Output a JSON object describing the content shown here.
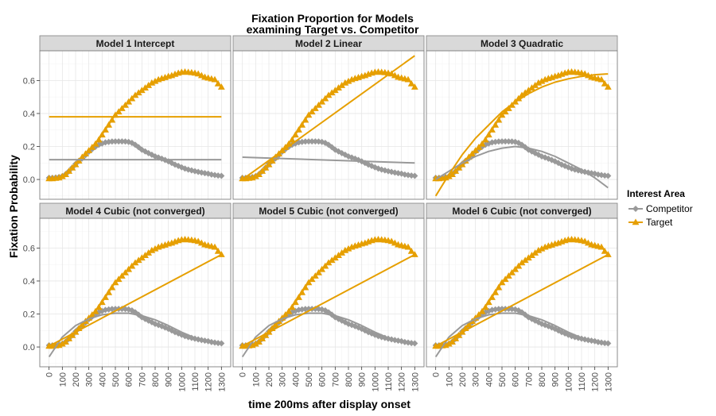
{
  "chart_data": {
    "type": "line",
    "title_lines": [
      "Fixation Proportion for Models",
      "examining Target vs. Competitor"
    ],
    "xlabel": "time 200ms after display onset",
    "ylabel": "Fixation Probability",
    "x_ticks": [
      0,
      100,
      200,
      300,
      400,
      500,
      600,
      700,
      800,
      900,
      1000,
      1100,
      1200,
      1300
    ],
    "y_ticks": [
      0.0,
      0.2,
      0.4,
      0.6
    ],
    "y_tick_labels": [
      "0.0",
      "0.2",
      "0.4",
      "0.6"
    ],
    "xlim": [
      -70,
      1370
    ],
    "ylim": [
      -0.12,
      0.78
    ],
    "grid": true,
    "legend": {
      "title": "Interest Area",
      "placement": "right",
      "entries": [
        {
          "label": "Competitor",
          "color": "#999999",
          "marker": "diamond"
        },
        {
          "label": "Target",
          "color": "#E69F00",
          "marker": "triangle"
        }
      ]
    },
    "observed": {
      "x": [
        0,
        25,
        50,
        75,
        100,
        125,
        150,
        175,
        200,
        225,
        250,
        275,
        300,
        325,
        350,
        375,
        400,
        425,
        450,
        475,
        500,
        525,
        550,
        575,
        600,
        625,
        650,
        675,
        700,
        725,
        750,
        775,
        800,
        825,
        850,
        875,
        900,
        925,
        950,
        975,
        1000,
        1025,
        1050,
        1075,
        1100,
        1125,
        1150,
        1175,
        1200,
        1225,
        1250,
        1275,
        1300
      ],
      "series": [
        {
          "name": "Competitor",
          "values": [
            0.01,
            0.01,
            0.012,
            0.015,
            0.02,
            0.032,
            0.05,
            0.072,
            0.094,
            0.112,
            0.128,
            0.148,
            0.168,
            0.184,
            0.198,
            0.21,
            0.218,
            0.225,
            0.228,
            0.23,
            0.231,
            0.231,
            0.231,
            0.23,
            0.228,
            0.222,
            0.21,
            0.196,
            0.18,
            0.17,
            0.16,
            0.15,
            0.14,
            0.133,
            0.126,
            0.118,
            0.11,
            0.1,
            0.09,
            0.082,
            0.074,
            0.066,
            0.06,
            0.055,
            0.05,
            0.046,
            0.042,
            0.038,
            0.035,
            0.03,
            0.027,
            0.024,
            0.022
          ]
        },
        {
          "name": "Target",
          "values": [
            0.005,
            0.005,
            0.007,
            0.01,
            0.018,
            0.03,
            0.05,
            0.07,
            0.09,
            0.112,
            0.135,
            0.155,
            0.175,
            0.195,
            0.215,
            0.24,
            0.27,
            0.3,
            0.33,
            0.36,
            0.39,
            0.41,
            0.43,
            0.45,
            0.47,
            0.49,
            0.51,
            0.525,
            0.54,
            0.555,
            0.57,
            0.585,
            0.595,
            0.605,
            0.612,
            0.618,
            0.625,
            0.63,
            0.638,
            0.645,
            0.65,
            0.652,
            0.65,
            0.648,
            0.645,
            0.64,
            0.63,
            0.62,
            0.615,
            0.61,
            0.605,
            0.58,
            0.56
          ]
        }
      ]
    },
    "panels": [
      {
        "label": "Model 1 Intercept",
        "fits": [
          {
            "name": "Competitor",
            "x": [
              0,
              1300
            ],
            "values": [
              0.12,
              0.12
            ]
          },
          {
            "name": "Target",
            "x": [
              0,
              1300
            ],
            "values": [
              0.38,
              0.38
            ]
          }
        ]
      },
      {
        "label": "Model 2 Linear",
        "fits": [
          {
            "name": "Competitor",
            "x": [
              0,
              1300
            ],
            "values": [
              0.135,
              0.1
            ]
          },
          {
            "name": "Target",
            "x": [
              0,
              1300
            ],
            "values": [
              0.0,
              0.75
            ]
          }
        ]
      },
      {
        "label": "Model 3 Quadratic",
        "fits": [
          {
            "name": "Competitor",
            "x": [
              0,
              100,
              200,
              300,
              400,
              500,
              600,
              700,
              800,
              900,
              1000,
              1100,
              1200,
              1300
            ],
            "values": [
              0.0,
              0.05,
              0.1,
              0.14,
              0.17,
              0.19,
              0.2,
              0.19,
              0.17,
              0.14,
              0.1,
              0.06,
              0.01,
              -0.05
            ]
          },
          {
            "name": "Target",
            "x": [
              0,
              100,
              200,
              300,
              400,
              500,
              600,
              700,
              800,
              900,
              1000,
              1100,
              1200,
              1300
            ],
            "values": [
              -0.1,
              0.03,
              0.15,
              0.25,
              0.33,
              0.41,
              0.47,
              0.52,
              0.56,
              0.59,
              0.61,
              0.625,
              0.635,
              0.64
            ]
          }
        ]
      },
      {
        "label": "Model 4 Cubic (not converged)",
        "fits": [
          {
            "name": "Competitor",
            "x": [
              0,
              100,
              200,
              300,
              400,
              500,
              600,
              700,
              800,
              900,
              1000,
              1100,
              1200,
              1300
            ],
            "values": [
              -0.06,
              0.06,
              0.13,
              0.17,
              0.195,
              0.205,
              0.205,
              0.19,
              0.165,
              0.13,
              0.09,
              0.055,
              0.03,
              0.02
            ]
          },
          {
            "name": "Target",
            "x": [
              0,
              1300
            ],
            "values": [
              0.005,
              0.56
            ]
          }
        ]
      },
      {
        "label": "Model 5 Cubic (not converged)",
        "fits": [
          {
            "name": "Competitor",
            "x": [
              0,
              100,
              200,
              300,
              400,
              500,
              600,
              700,
              800,
              900,
              1000,
              1100,
              1200,
              1300
            ],
            "values": [
              -0.06,
              0.06,
              0.13,
              0.17,
              0.195,
              0.205,
              0.205,
              0.19,
              0.165,
              0.13,
              0.09,
              0.055,
              0.03,
              0.02
            ]
          },
          {
            "name": "Target",
            "x": [
              0,
              1300
            ],
            "values": [
              0.005,
              0.56
            ]
          }
        ]
      },
      {
        "label": "Model 6 Cubic (not converged)",
        "fits": [
          {
            "name": "Competitor",
            "x": [
              0,
              100,
              200,
              300,
              400,
              500,
              600,
              700,
              800,
              900,
              1000,
              1100,
              1200,
              1300
            ],
            "values": [
              -0.06,
              0.06,
              0.13,
              0.17,
              0.195,
              0.205,
              0.205,
              0.19,
              0.165,
              0.13,
              0.09,
              0.055,
              0.03,
              0.02
            ]
          },
          {
            "name": "Target",
            "x": [
              0,
              1300
            ],
            "values": [
              0.005,
              0.56
            ]
          }
        ]
      }
    ],
    "colors": {
      "panel_bg": "#ffffff",
      "grid_major": "#e6e6e6",
      "grid_minor": "#f4f4f4",
      "strip_bg": "#d9d9d9",
      "border": "#7f7f7f",
      "competitor": "#999999",
      "target": "#E69F00"
    }
  }
}
